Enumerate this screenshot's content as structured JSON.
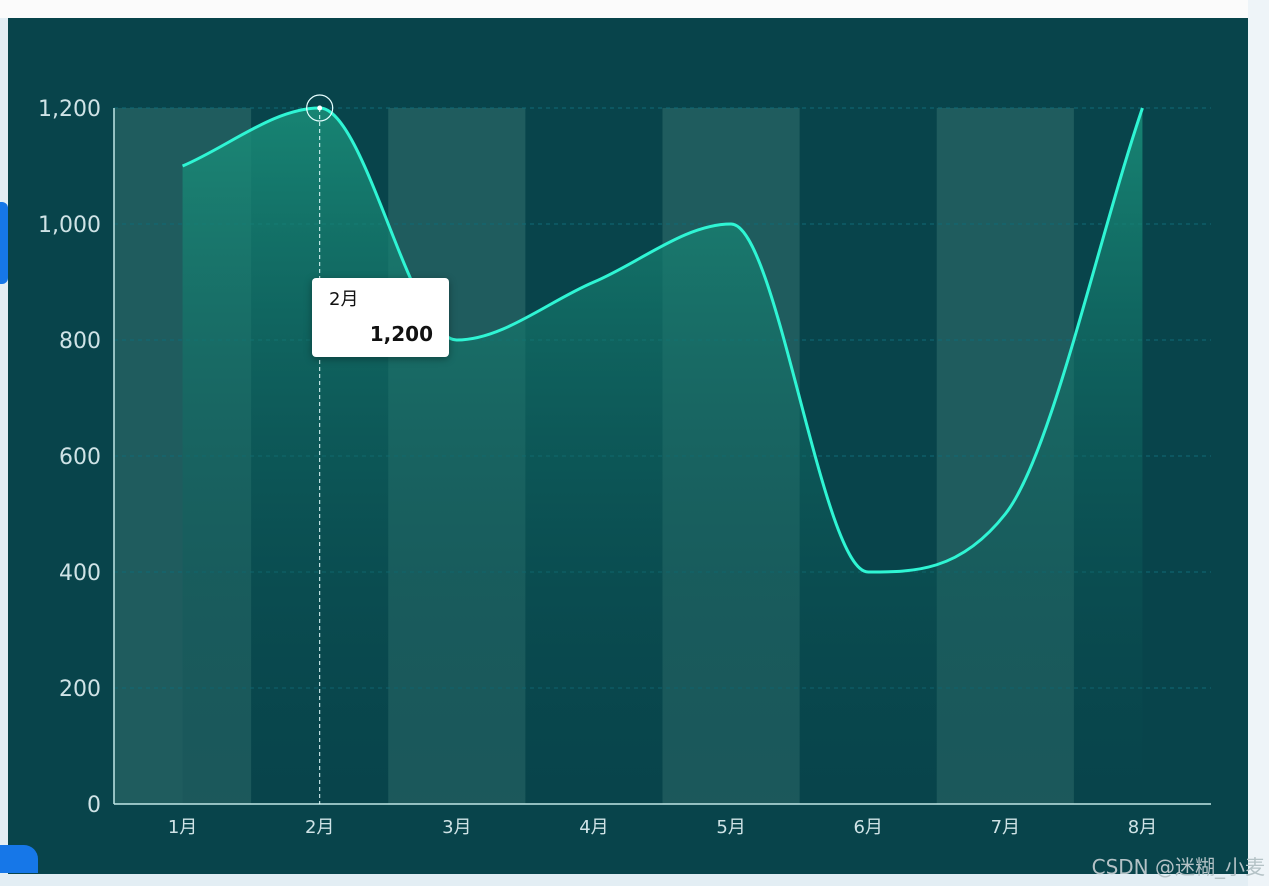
{
  "chart_data": {
    "type": "area",
    "categories": [
      "1月",
      "2月",
      "3月",
      "4月",
      "5月",
      "6月",
      "7月",
      "8月"
    ],
    "series": [
      {
        "values": [
          1100,
          1200,
          800,
          900,
          1000,
          400,
          500,
          1200
        ]
      }
    ],
    "y_ticks": [
      "0",
      "200",
      "400",
      "600",
      "800",
      "1,000",
      "1,200"
    ],
    "ylim": [
      0,
      1200
    ],
    "grid": "horizontal dashed",
    "smooth": true,
    "colors": {
      "background": "#08444b",
      "line": "#2ff5d4",
      "area_top": "#1a8f7a",
      "stripe": "#1f5c5e",
      "axis_text": "#cfe3e6",
      "grid": "#0f6a77"
    }
  },
  "tooltip": {
    "category": "2月",
    "value": "1,200"
  },
  "watermark": "CSDN @迷糊_小麦"
}
